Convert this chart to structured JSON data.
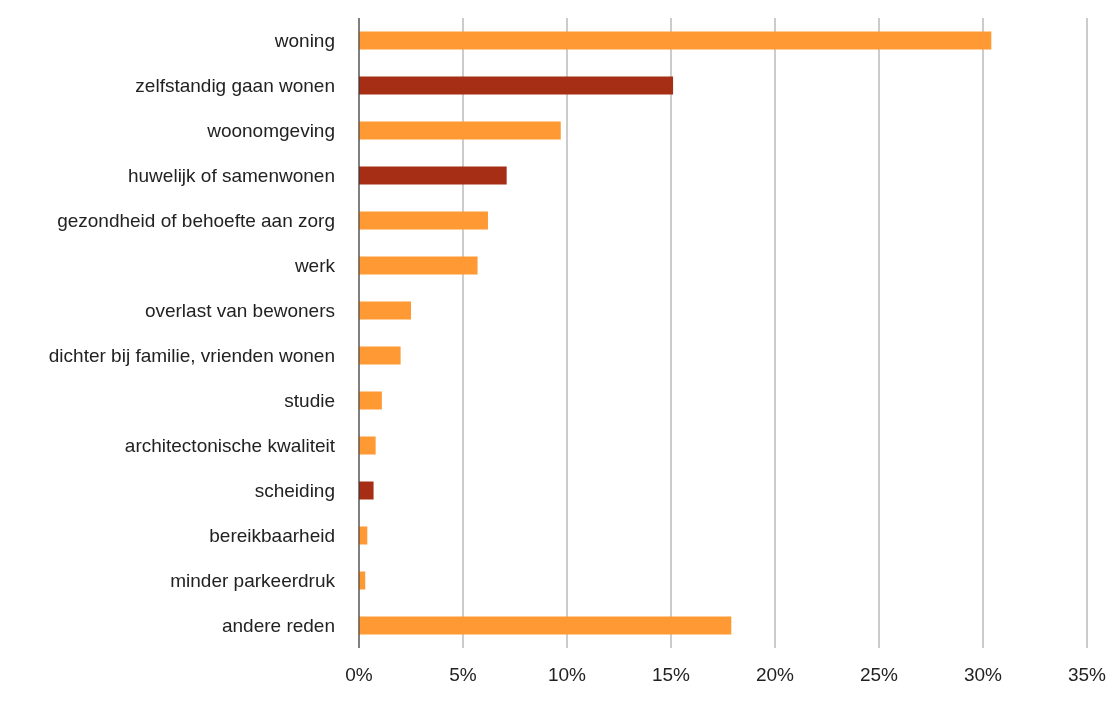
{
  "chart_data": {
    "type": "bar",
    "orientation": "horizontal",
    "categories": [
      "woning",
      "zelfstandig gaan wonen",
      "woonomgeving",
      "huwelijk of samenwonen",
      "gezondheid of behoefte aan zorg",
      "werk",
      "overlast van bewoners",
      "dichter bij familie, vrienden wonen",
      "studie",
      "architectonische kwaliteit",
      "scheiding",
      "bereikbaarheid",
      "minder parkeerdruk",
      "andere reden"
    ],
    "values": [
      30.4,
      15.1,
      9.7,
      7.1,
      6.2,
      5.7,
      2.5,
      2.0,
      1.1,
      0.8,
      0.7,
      0.4,
      0.3,
      17.9
    ],
    "colors": [
      "#ff9933",
      "#a52e14",
      "#ff9933",
      "#a52e14",
      "#ff9933",
      "#ff9933",
      "#ff9933",
      "#ff9933",
      "#ff9933",
      "#ff9933",
      "#a52e14",
      "#ff9933",
      "#ff9933",
      "#ff9933"
    ],
    "xlim": [
      0,
      35
    ],
    "xticks": [
      {
        "value": 0,
        "label": "0%"
      },
      {
        "value": 5,
        "label": "5%"
      },
      {
        "value": 10,
        "label": "10%"
      },
      {
        "value": 15,
        "label": "15%"
      },
      {
        "value": 20,
        "label": "20%"
      },
      {
        "value": 25,
        "label": "25%"
      },
      {
        "value": 30,
        "label": "30%"
      },
      {
        "value": 35,
        "label": "35%"
      }
    ],
    "grid": "x"
  }
}
